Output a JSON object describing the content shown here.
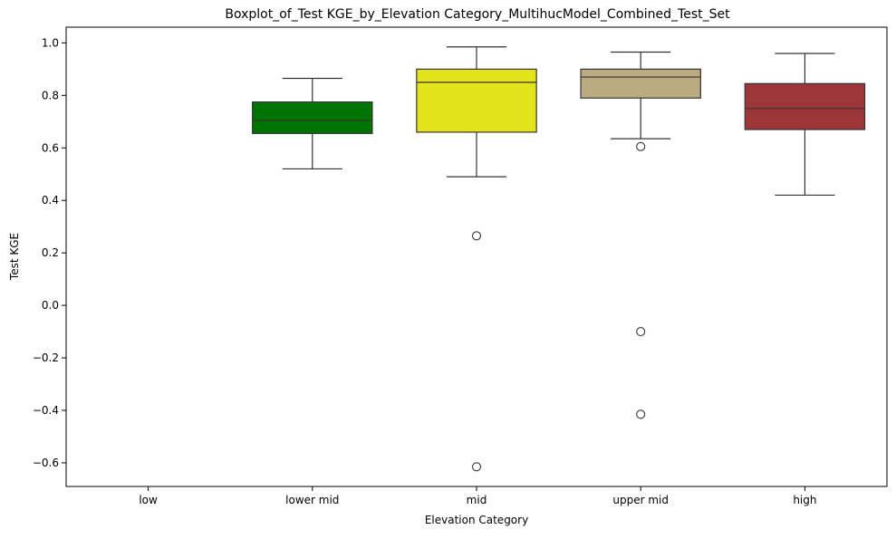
{
  "chart_data": {
    "type": "boxplot",
    "title": "Boxplot_of_Test KGE_by_Elevation Category_MultihucModel_Combined_Test_Set",
    "xlabel": "Elevation Category",
    "ylabel": "Test KGE",
    "ylim": [
      -0.69,
      1.06
    ],
    "yticks": [
      -0.6,
      -0.4,
      -0.2,
      0.0,
      0.2,
      0.4,
      0.6,
      0.8,
      1.0
    ],
    "ytick_labels": [
      "−0.6",
      "−0.4",
      "−0.2",
      "0.0",
      "0.2",
      "0.4",
      "0.6",
      "0.8",
      "1.0"
    ],
    "grid": false,
    "categories": [
      "low",
      "lower mid",
      "mid",
      "upper mid",
      "high"
    ],
    "boxes": [
      {
        "category": "low",
        "empty": true
      },
      {
        "category": "lower mid",
        "color": "#007400",
        "whisker_low": 0.52,
        "q1": 0.655,
        "median": 0.705,
        "q3": 0.775,
        "whisker_high": 0.865,
        "outliers": []
      },
      {
        "category": "mid",
        "color": "#e3e31b",
        "whisker_low": 0.49,
        "q1": 0.66,
        "median": 0.85,
        "q3": 0.9,
        "whisker_high": 0.985,
        "outliers": [
          0.265,
          -0.615
        ]
      },
      {
        "category": "upper mid",
        "color": "#bbab80",
        "whisker_low": 0.635,
        "q1": 0.79,
        "median": 0.87,
        "q3": 0.9,
        "whisker_high": 0.965,
        "outliers": [
          0.605,
          -0.1,
          -0.415
        ]
      },
      {
        "category": "high",
        "color": "#9c3638",
        "whisker_low": 0.42,
        "q1": 0.67,
        "median": 0.75,
        "q3": 0.845,
        "whisker_high": 0.96,
        "outliers": []
      }
    ]
  }
}
